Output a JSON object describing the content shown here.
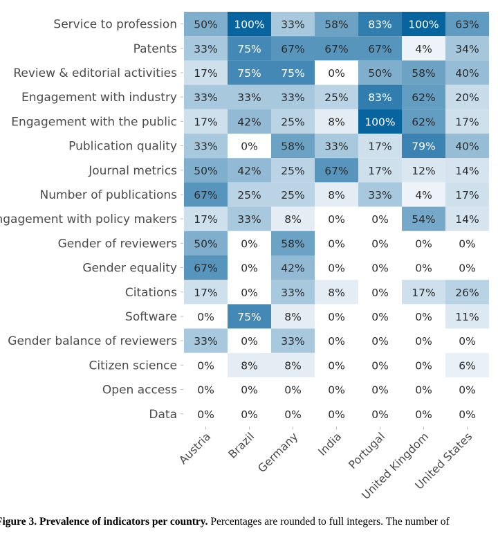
{
  "chart_data": {
    "type": "heatmap",
    "columns": [
      "Austria",
      "Brazil",
      "Germany",
      "India",
      "Portugal",
      "United Kingdom",
      "United States"
    ],
    "rows": [
      {
        "label": "Service to profession",
        "values": [
          50,
          100,
          33,
          58,
          83,
          100,
          63
        ]
      },
      {
        "label": "Patents",
        "values": [
          33,
          75,
          67,
          67,
          67,
          4,
          34
        ]
      },
      {
        "label": "Review & editorial activities",
        "values": [
          17,
          75,
          75,
          0,
          50,
          58,
          40
        ]
      },
      {
        "label": "Engagement with industry",
        "values": [
          33,
          33,
          33,
          25,
          83,
          62,
          20
        ]
      },
      {
        "label": "Engagement with the public",
        "values": [
          17,
          42,
          25,
          8,
          100,
          62,
          17
        ]
      },
      {
        "label": "Publication quality",
        "values": [
          33,
          0,
          58,
          33,
          17,
          79,
          40
        ]
      },
      {
        "label": "Journal metrics",
        "values": [
          50,
          42,
          25,
          67,
          17,
          12,
          14
        ]
      },
      {
        "label": "Number of publications",
        "values": [
          67,
          25,
          25,
          8,
          33,
          4,
          17
        ]
      },
      {
        "label": "Engagement with policy makers",
        "values": [
          17,
          33,
          8,
          0,
          0,
          54,
          14
        ]
      },
      {
        "label": "Gender of reviewers",
        "values": [
          50,
          0,
          58,
          0,
          0,
          0,
          0
        ]
      },
      {
        "label": "Gender equality",
        "values": [
          67,
          0,
          42,
          0,
          0,
          0,
          0
        ]
      },
      {
        "label": "Citations",
        "values": [
          17,
          0,
          33,
          8,
          0,
          17,
          26
        ]
      },
      {
        "label": "Software",
        "values": [
          0,
          75,
          8,
          0,
          0,
          0,
          11
        ]
      },
      {
        "label": "Gender balance of reviewers",
        "values": [
          33,
          0,
          33,
          0,
          0,
          0,
          0
        ]
      },
      {
        "label": "Citizen science",
        "values": [
          0,
          8,
          8,
          0,
          0,
          0,
          6
        ]
      },
      {
        "label": "Open access",
        "values": [
          0,
          0,
          0,
          0,
          0,
          0,
          0
        ]
      },
      {
        "label": "Data",
        "values": [
          0,
          0,
          0,
          0,
          0,
          0,
          0
        ]
      }
    ],
    "value_suffix": "%",
    "value_range": [
      0,
      100
    ],
    "color_low": "#f7f9fc",
    "color_high": "#08649e"
  },
  "caption": {
    "title": "Figure 3. Prevalence of indicators per country.",
    "text": "Percentages are rounded to full integers. The number of"
  }
}
